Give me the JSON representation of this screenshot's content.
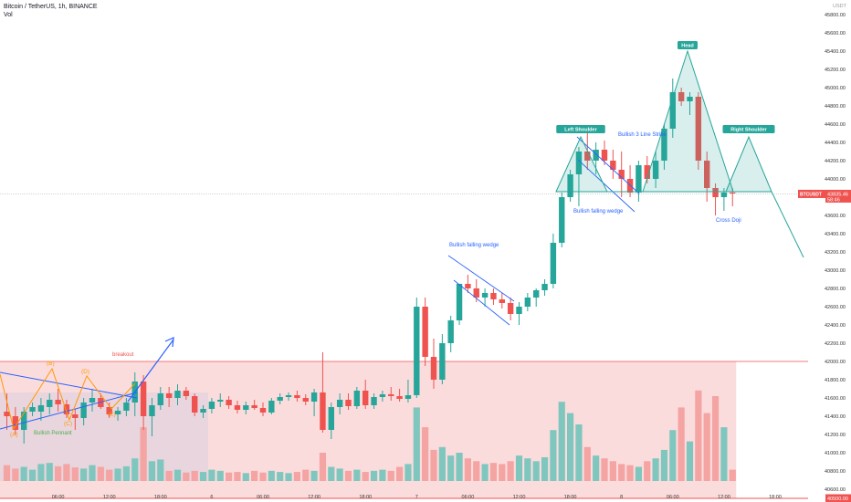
{
  "header": {
    "symbol_line": "Bitcoin / TetherUS, 1h, BINANCE",
    "volume_label": "Vol"
  },
  "colors": {
    "up": "#26a69a",
    "down": "#ef5350",
    "volume_up": "#7fc7be",
    "volume_down": "#f4a4a2",
    "zone_fill": "#fbdcdd",
    "annotation_blue": "#2962ff",
    "pattern_green": "#26a69a",
    "orange": "#ff9800",
    "price_tag": "#ef5350"
  },
  "chart_data": {
    "type": "candlestick",
    "title": "",
    "xlabel": "",
    "ylabel": "",
    "currency": "USDT",
    "ylim": [
      40300,
      46000
    ],
    "yticks": [
      40500,
      40600,
      40800,
      41000,
      41200,
      41400,
      41600,
      41800,
      42000,
      42200,
      42400,
      42600,
      42800,
      43000,
      43200,
      43400,
      43600,
      44000,
      44200,
      44400,
      44600,
      44800,
      45000,
      45200,
      45400,
      45600,
      45800
    ],
    "ytick_labels": [
      "40500.00",
      "40600.00",
      "40800.00",
      "41000.00",
      "41200.00",
      "41400.00",
      "41600.00",
      "41800.00",
      "42000.00",
      "42200.00",
      "42400.00",
      "42600.00",
      "42800.00",
      "43000.00",
      "43200.00",
      "43400.00",
      "43600.00",
      "44000.00",
      "44200.00",
      "44400.00",
      "44600.00",
      "44800.00",
      "45000.00",
      "45200.00",
      "45400.00",
      "45600.00",
      "45800.00"
    ],
    "xticks": [
      {
        "label": "06:00",
        "index": 6
      },
      {
        "label": "12:00",
        "index": 12
      },
      {
        "label": "18:00",
        "index": 18
      },
      {
        "label": "6",
        "index": 24
      },
      {
        "label": "06:00",
        "index": 30
      },
      {
        "label": "12:00",
        "index": 36
      },
      {
        "label": "18:00",
        "index": 42
      },
      {
        "label": "7",
        "index": 48
      },
      {
        "label": "06:00",
        "index": 54
      },
      {
        "label": "12:00",
        "index": 60
      },
      {
        "label": "18:00",
        "index": 66
      },
      {
        "label": "8",
        "index": 72
      },
      {
        "label": "06:00",
        "index": 78
      },
      {
        "label": "12:00",
        "index": 84
      },
      {
        "label": "18:00",
        "index": 90
      }
    ],
    "candles": [
      {
        "o": 41450,
        "h": 41650,
        "l": 41250,
        "c": 41400
      },
      {
        "o": 41400,
        "h": 41500,
        "l": 41200,
        "c": 41250
      },
      {
        "o": 41250,
        "h": 41500,
        "l": 41100,
        "c": 41450
      },
      {
        "o": 41450,
        "h": 41550,
        "l": 41400,
        "c": 41500
      },
      {
        "o": 41450,
        "h": 41600,
        "l": 41350,
        "c": 41520
      },
      {
        "o": 41500,
        "h": 41650,
        "l": 41420,
        "c": 41580
      },
      {
        "o": 41580,
        "h": 41700,
        "l": 41450,
        "c": 41530
      },
      {
        "o": 41530,
        "h": 41580,
        "l": 41380,
        "c": 41420
      },
      {
        "o": 41420,
        "h": 41480,
        "l": 41250,
        "c": 41380
      },
      {
        "o": 41380,
        "h": 41600,
        "l": 41300,
        "c": 41550
      },
      {
        "o": 41550,
        "h": 41700,
        "l": 41450,
        "c": 41600
      },
      {
        "o": 41600,
        "h": 41650,
        "l": 41480,
        "c": 41500
      },
      {
        "o": 41500,
        "h": 41550,
        "l": 41380,
        "c": 41420
      },
      {
        "o": 41420,
        "h": 41500,
        "l": 41350,
        "c": 41460
      },
      {
        "o": 41460,
        "h": 41600,
        "l": 41400,
        "c": 41550
      },
      {
        "o": 41550,
        "h": 41880,
        "l": 41400,
        "c": 41780
      },
      {
        "o": 41780,
        "h": 41850,
        "l": 41250,
        "c": 41400
      },
      {
        "o": 41400,
        "h": 41600,
        "l": 41180,
        "c": 41520
      },
      {
        "o": 41520,
        "h": 41720,
        "l": 41470,
        "c": 41650
      },
      {
        "o": 41650,
        "h": 41720,
        "l": 41500,
        "c": 41600
      },
      {
        "o": 41600,
        "h": 41750,
        "l": 41520,
        "c": 41680
      },
      {
        "o": 41680,
        "h": 41720,
        "l": 41580,
        "c": 41620
      },
      {
        "o": 41620,
        "h": 41650,
        "l": 41400,
        "c": 41440
      },
      {
        "o": 41440,
        "h": 41520,
        "l": 41380,
        "c": 41480
      },
      {
        "o": 41480,
        "h": 41600,
        "l": 41430,
        "c": 41560
      },
      {
        "o": 41560,
        "h": 41650,
        "l": 41500,
        "c": 41580
      },
      {
        "o": 41580,
        "h": 41620,
        "l": 41480,
        "c": 41520
      },
      {
        "o": 41520,
        "h": 41570,
        "l": 41430,
        "c": 41470
      },
      {
        "o": 41470,
        "h": 41560,
        "l": 41420,
        "c": 41520
      },
      {
        "o": 41520,
        "h": 41580,
        "l": 41470,
        "c": 41490
      },
      {
        "o": 41490,
        "h": 41550,
        "l": 41400,
        "c": 41440
      },
      {
        "o": 41440,
        "h": 41600,
        "l": 41420,
        "c": 41570
      },
      {
        "o": 41570,
        "h": 41650,
        "l": 41530,
        "c": 41610
      },
      {
        "o": 41610,
        "h": 41660,
        "l": 41570,
        "c": 41630
      },
      {
        "o": 41630,
        "h": 41680,
        "l": 41560,
        "c": 41600
      },
      {
        "o": 41600,
        "h": 41640,
        "l": 41520,
        "c": 41560
      },
      {
        "o": 41560,
        "h": 41700,
        "l": 41400,
        "c": 41660
      },
      {
        "o": 41660,
        "h": 42100,
        "l": 41220,
        "c": 41250
      },
      {
        "o": 41250,
        "h": 41550,
        "l": 41150,
        "c": 41500
      },
      {
        "o": 41500,
        "h": 41650,
        "l": 41420,
        "c": 41580
      },
      {
        "o": 41580,
        "h": 41650,
        "l": 41470,
        "c": 41510
      },
      {
        "o": 41510,
        "h": 41720,
        "l": 41480,
        "c": 41680
      },
      {
        "o": 41680,
        "h": 41800,
        "l": 41480,
        "c": 41520
      },
      {
        "o": 41520,
        "h": 41650,
        "l": 41480,
        "c": 41610
      },
      {
        "o": 41610,
        "h": 41680,
        "l": 41560,
        "c": 41640
      },
      {
        "o": 41640,
        "h": 41720,
        "l": 41570,
        "c": 41620
      },
      {
        "o": 41620,
        "h": 41700,
        "l": 41560,
        "c": 41590
      },
      {
        "o": 41590,
        "h": 41800,
        "l": 41550,
        "c": 41630
      },
      {
        "o": 41630,
        "h": 42700,
        "l": 41600,
        "c": 42600
      },
      {
        "o": 42600,
        "h": 42700,
        "l": 41950,
        "c": 42050
      },
      {
        "o": 42050,
        "h": 42250,
        "l": 41700,
        "c": 41800
      },
      {
        "o": 41800,
        "h": 42300,
        "l": 41750,
        "c": 42200
      },
      {
        "o": 42200,
        "h": 42500,
        "l": 42100,
        "c": 42450
      },
      {
        "o": 42450,
        "h": 42850,
        "l": 42400,
        "c": 42850
      },
      {
        "o": 42850,
        "h": 42950,
        "l": 42750,
        "c": 42800
      },
      {
        "o": 42800,
        "h": 42900,
        "l": 42650,
        "c": 42700
      },
      {
        "o": 42700,
        "h": 42800,
        "l": 42600,
        "c": 42750
      },
      {
        "o": 42750,
        "h": 42800,
        "l": 42620,
        "c": 42680
      },
      {
        "o": 42680,
        "h": 42750,
        "l": 42580,
        "c": 42640
      },
      {
        "o": 42640,
        "h": 42700,
        "l": 42450,
        "c": 42520
      },
      {
        "o": 42520,
        "h": 42650,
        "l": 42400,
        "c": 42600
      },
      {
        "o": 42600,
        "h": 42750,
        "l": 42550,
        "c": 42700
      },
      {
        "o": 42700,
        "h": 42800,
        "l": 42600,
        "c": 42780
      },
      {
        "o": 42780,
        "h": 42900,
        "l": 42720,
        "c": 42850
      },
      {
        "o": 42850,
        "h": 43400,
        "l": 42800,
        "c": 43300
      },
      {
        "o": 43300,
        "h": 43850,
        "l": 43250,
        "c": 43800
      },
      {
        "o": 43800,
        "h": 44100,
        "l": 43750,
        "c": 44050
      },
      {
        "o": 44050,
        "h": 44350,
        "l": 43700,
        "c": 44300
      },
      {
        "o": 44300,
        "h": 44500,
        "l": 44100,
        "c": 44200
      },
      {
        "o": 44200,
        "h": 44400,
        "l": 44050,
        "c": 44320
      },
      {
        "o": 44320,
        "h": 44420,
        "l": 44150,
        "c": 44200
      },
      {
        "o": 44200,
        "h": 44320,
        "l": 44000,
        "c": 44100
      },
      {
        "o": 44100,
        "h": 44300,
        "l": 43800,
        "c": 44000
      },
      {
        "o": 44000,
        "h": 44150,
        "l": 43800,
        "c": 43850
      },
      {
        "o": 43850,
        "h": 44200,
        "l": 43750,
        "c": 44150
      },
      {
        "o": 44150,
        "h": 44250,
        "l": 43950,
        "c": 44000
      },
      {
        "o": 44000,
        "h": 44300,
        "l": 43900,
        "c": 44200
      },
      {
        "o": 44200,
        "h": 44600,
        "l": 44100,
        "c": 44550
      },
      {
        "o": 44550,
        "h": 45100,
        "l": 44450,
        "c": 44950
      },
      {
        "o": 44950,
        "h": 45000,
        "l": 44800,
        "c": 44850
      },
      {
        "o": 44850,
        "h": 44950,
        "l": 44700,
        "c": 44900
      },
      {
        "o": 44900,
        "h": 44950,
        "l": 44100,
        "c": 44200
      },
      {
        "o": 44200,
        "h": 44300,
        "l": 43750,
        "c": 43900
      },
      {
        "o": 43900,
        "h": 43950,
        "l": 43600,
        "c": 43800
      },
      {
        "o": 43800,
        "h": 43900,
        "l": 43650,
        "c": 43850
      },
      {
        "o": 43850,
        "h": 43900,
        "l": 43700,
        "c": 43840
      }
    ],
    "volumes": [
      28,
      22,
      25,
      20,
      30,
      32,
      26,
      30,
      24,
      22,
      28,
      25,
      20,
      22,
      26,
      40,
      95,
      35,
      38,
      18,
      20,
      15,
      18,
      16,
      20,
      18,
      15,
      16,
      14,
      18,
      15,
      18,
      16,
      14,
      16,
      20,
      18,
      50,
      25,
      22,
      18,
      20,
      16,
      18,
      20,
      18,
      25,
      30,
      130,
      95,
      55,
      60,
      45,
      50,
      40,
      35,
      30,
      32,
      30,
      35,
      45,
      40,
      35,
      42,
      90,
      140,
      120,
      100,
      60,
      45,
      40,
      35,
      30,
      28,
      25,
      35,
      40,
      55,
      90,
      130,
      70,
      160,
      120,
      150,
      95,
      20
    ],
    "zone": {
      "low": 40500,
      "high": 42000,
      "end_index": 85
    },
    "last_price": 43835.46,
    "price_tag": {
      "symbol": "BTCUSDT",
      "price": "43835.46",
      "countdown": "58:46"
    },
    "low_line_label": "40500.00",
    "annotations": [
      "breakout",
      "Bullish Pennant",
      "(A)",
      "(B)",
      "(C)",
      "(D)",
      "(E)",
      "Bullish falling wedge",
      "Bullish falling wedge",
      "Left Shoulder",
      "Head",
      "Right Shoulder",
      "Bullish 3 Line Strike",
      "Cross Doji"
    ]
  }
}
